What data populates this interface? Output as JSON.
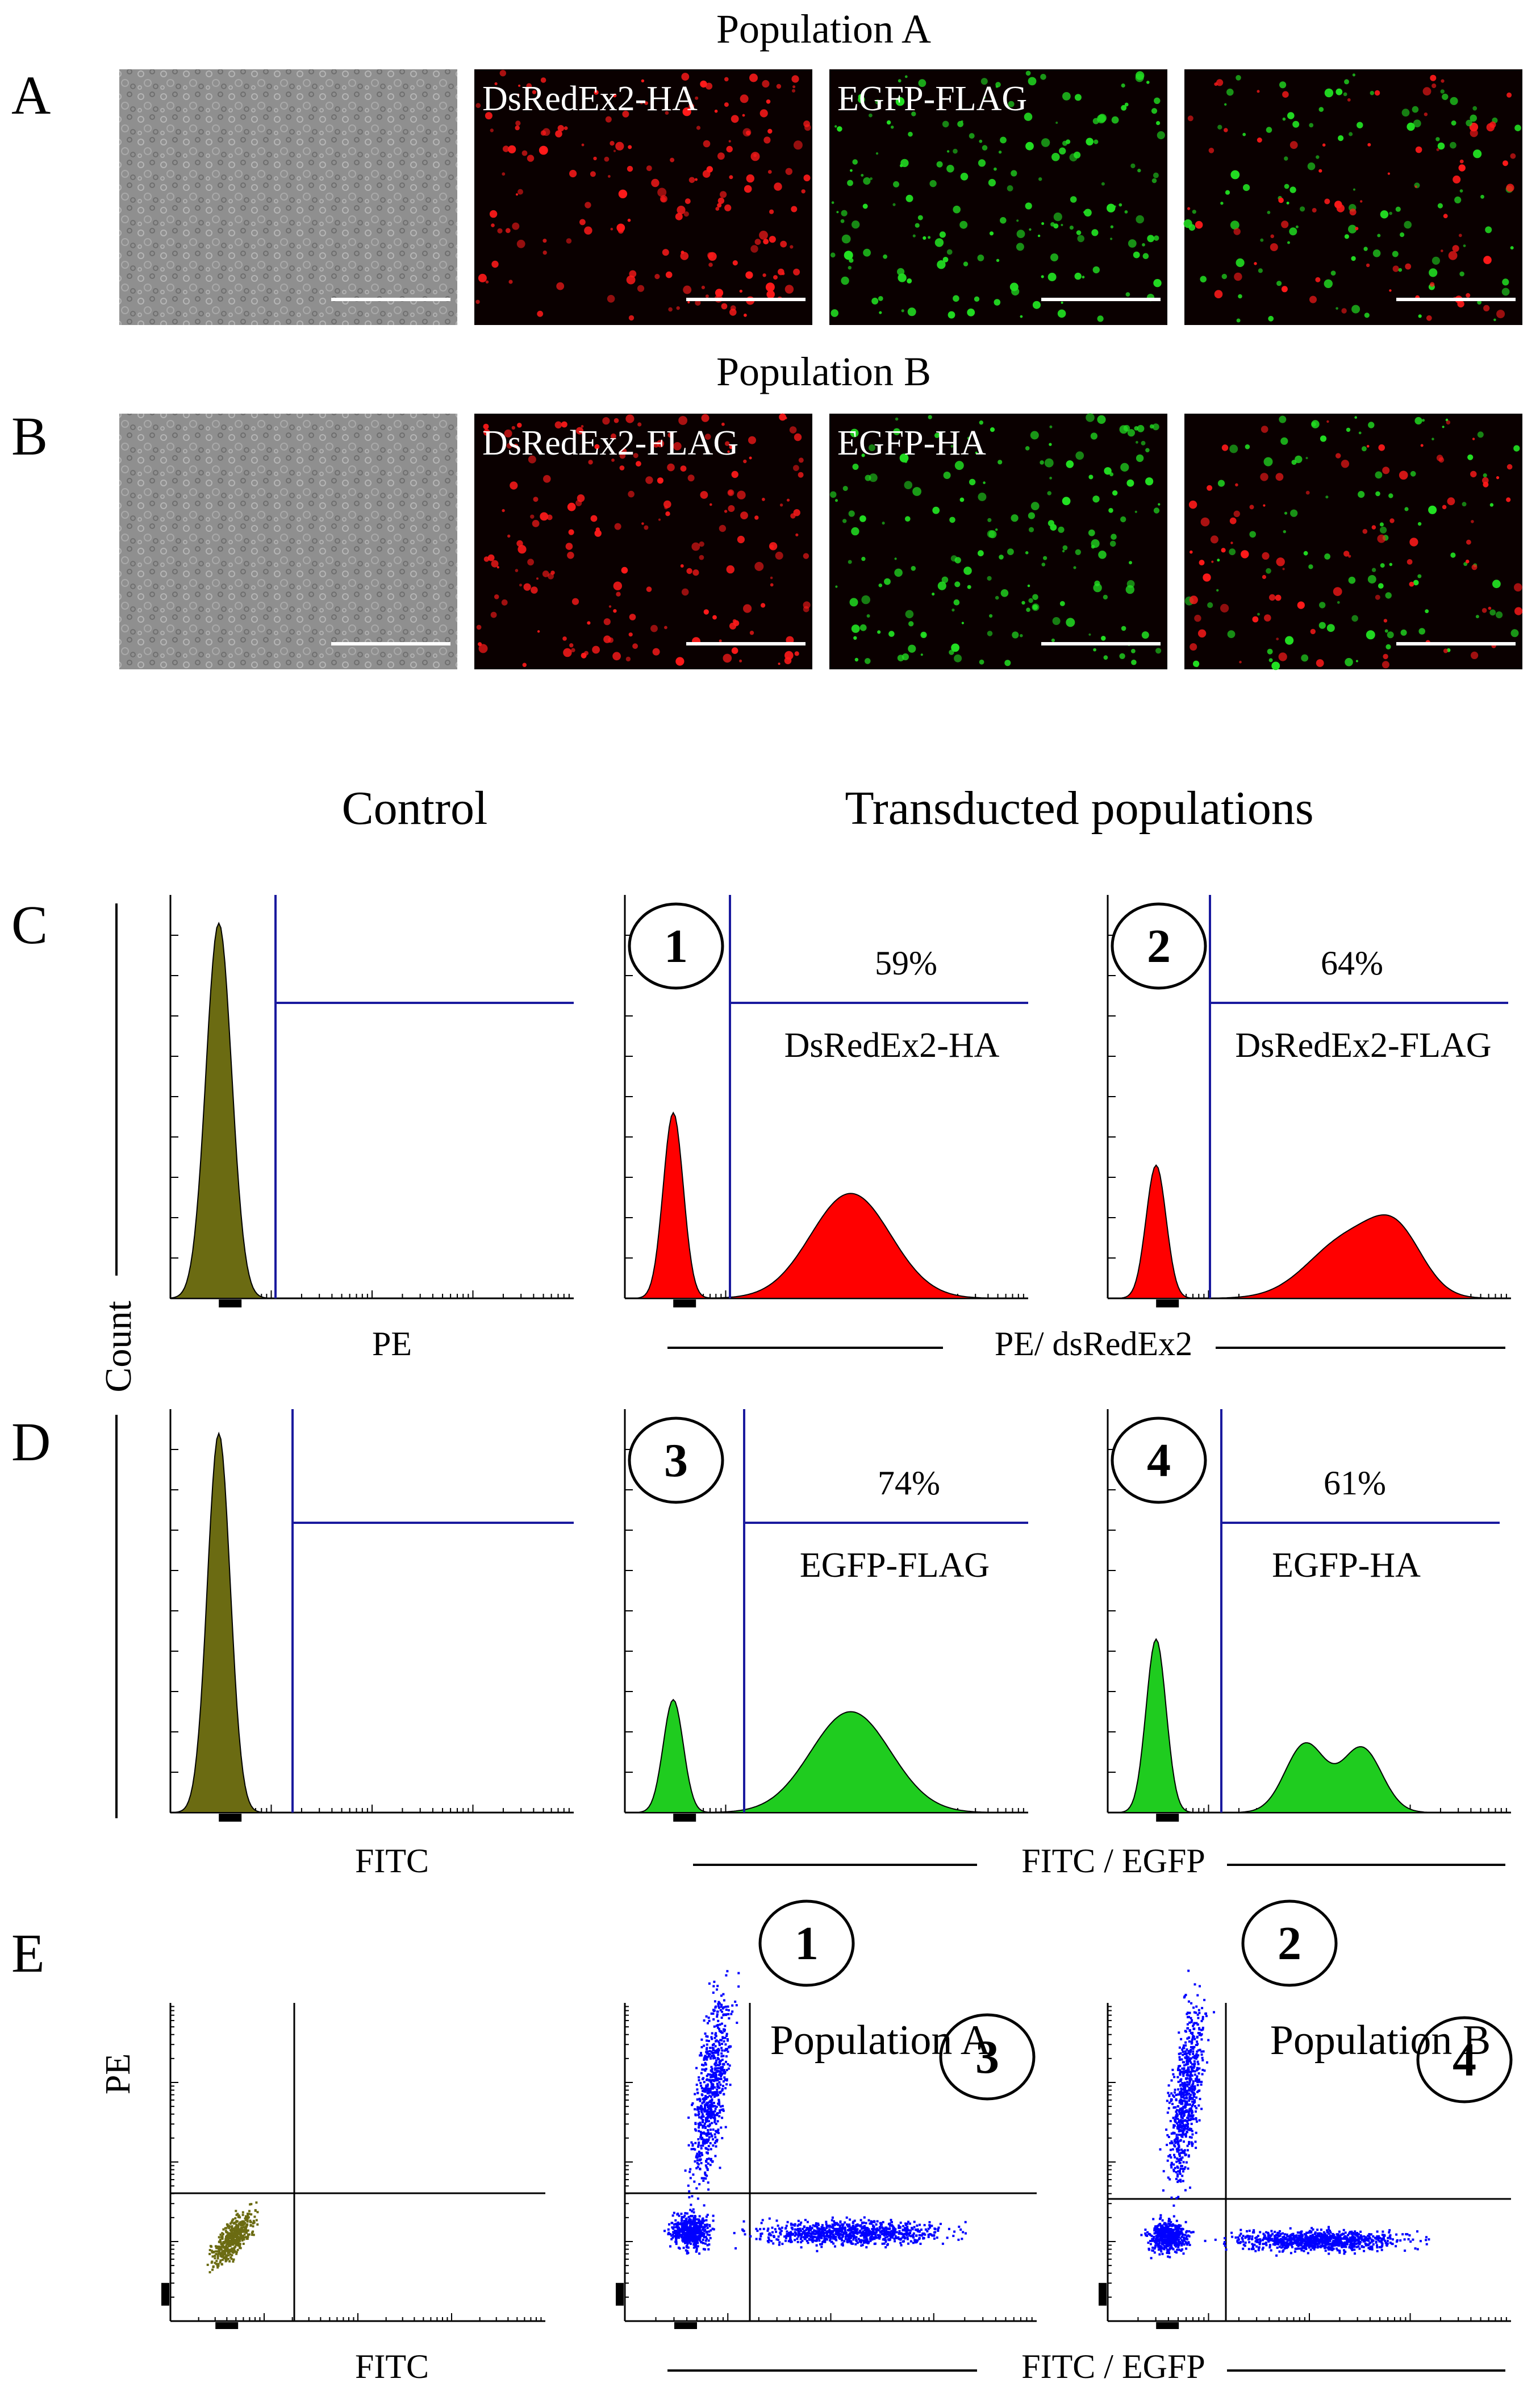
{
  "figure": {
    "panel_letters": [
      "A",
      "B",
      "C",
      "D",
      "E"
    ],
    "microscopy": {
      "population_a_title": "Population A",
      "population_b_title": "Population B",
      "row_a_labels": [
        "",
        "DsRedEx2-HA",
        "EGFP-FLAG",
        ""
      ],
      "row_b_labels": [
        "",
        "DsRedEx2-FLAG",
        "EGFP-HA",
        ""
      ],
      "channels": [
        "phase-contrast",
        "red",
        "green",
        "merge"
      ],
      "colors": {
        "phase": "#8c8c8c",
        "red": "#ff1a1a",
        "green": "#22e022",
        "dark": "#0a0000"
      }
    },
    "flow": {
      "control_heading": "Control",
      "transduced_heading": "Transducted populations",
      "count_axis_label": "Count",
      "row_c": {
        "control_xlabel": "PE",
        "shared_xlabel": "PE/ dsRedEx2",
        "plots": [
          {
            "circle": "",
            "percent": "",
            "label": ""
          },
          {
            "circle": "1",
            "percent": "59%",
            "label": "DsRedEx2-HA"
          },
          {
            "circle": "2",
            "percent": "64%",
            "label": "DsRedEx2-FLAG"
          }
        ]
      },
      "row_d": {
        "control_xlabel": "FITC",
        "shared_xlabel": "FITC / EGFP",
        "plots": [
          {
            "circle": "",
            "percent": "",
            "label": ""
          },
          {
            "circle": "3",
            "percent": "74%",
            "label": "EGFP-FLAG"
          },
          {
            "circle": "4",
            "percent": "61%",
            "label": "EGFP-HA"
          }
        ]
      },
      "row_e": {
        "control_xlabel": "FITC",
        "control_ylabel": "PE",
        "shared_xlabel": "FITC / EGFP",
        "plots": [
          {
            "circle_top": "",
            "circle_bottom": "",
            "label": ""
          },
          {
            "circle_top": "1",
            "circle_bottom": "3",
            "label": "Population A"
          },
          {
            "circle_top": "2",
            "circle_bottom": "4",
            "label": "Population B"
          }
        ]
      },
      "colors": {
        "olive": "#6b6b12",
        "red": "#ff0000",
        "green": "#1fcc1f",
        "blue": "#0000ff",
        "gate": "#1a1a9e"
      }
    }
  }
}
